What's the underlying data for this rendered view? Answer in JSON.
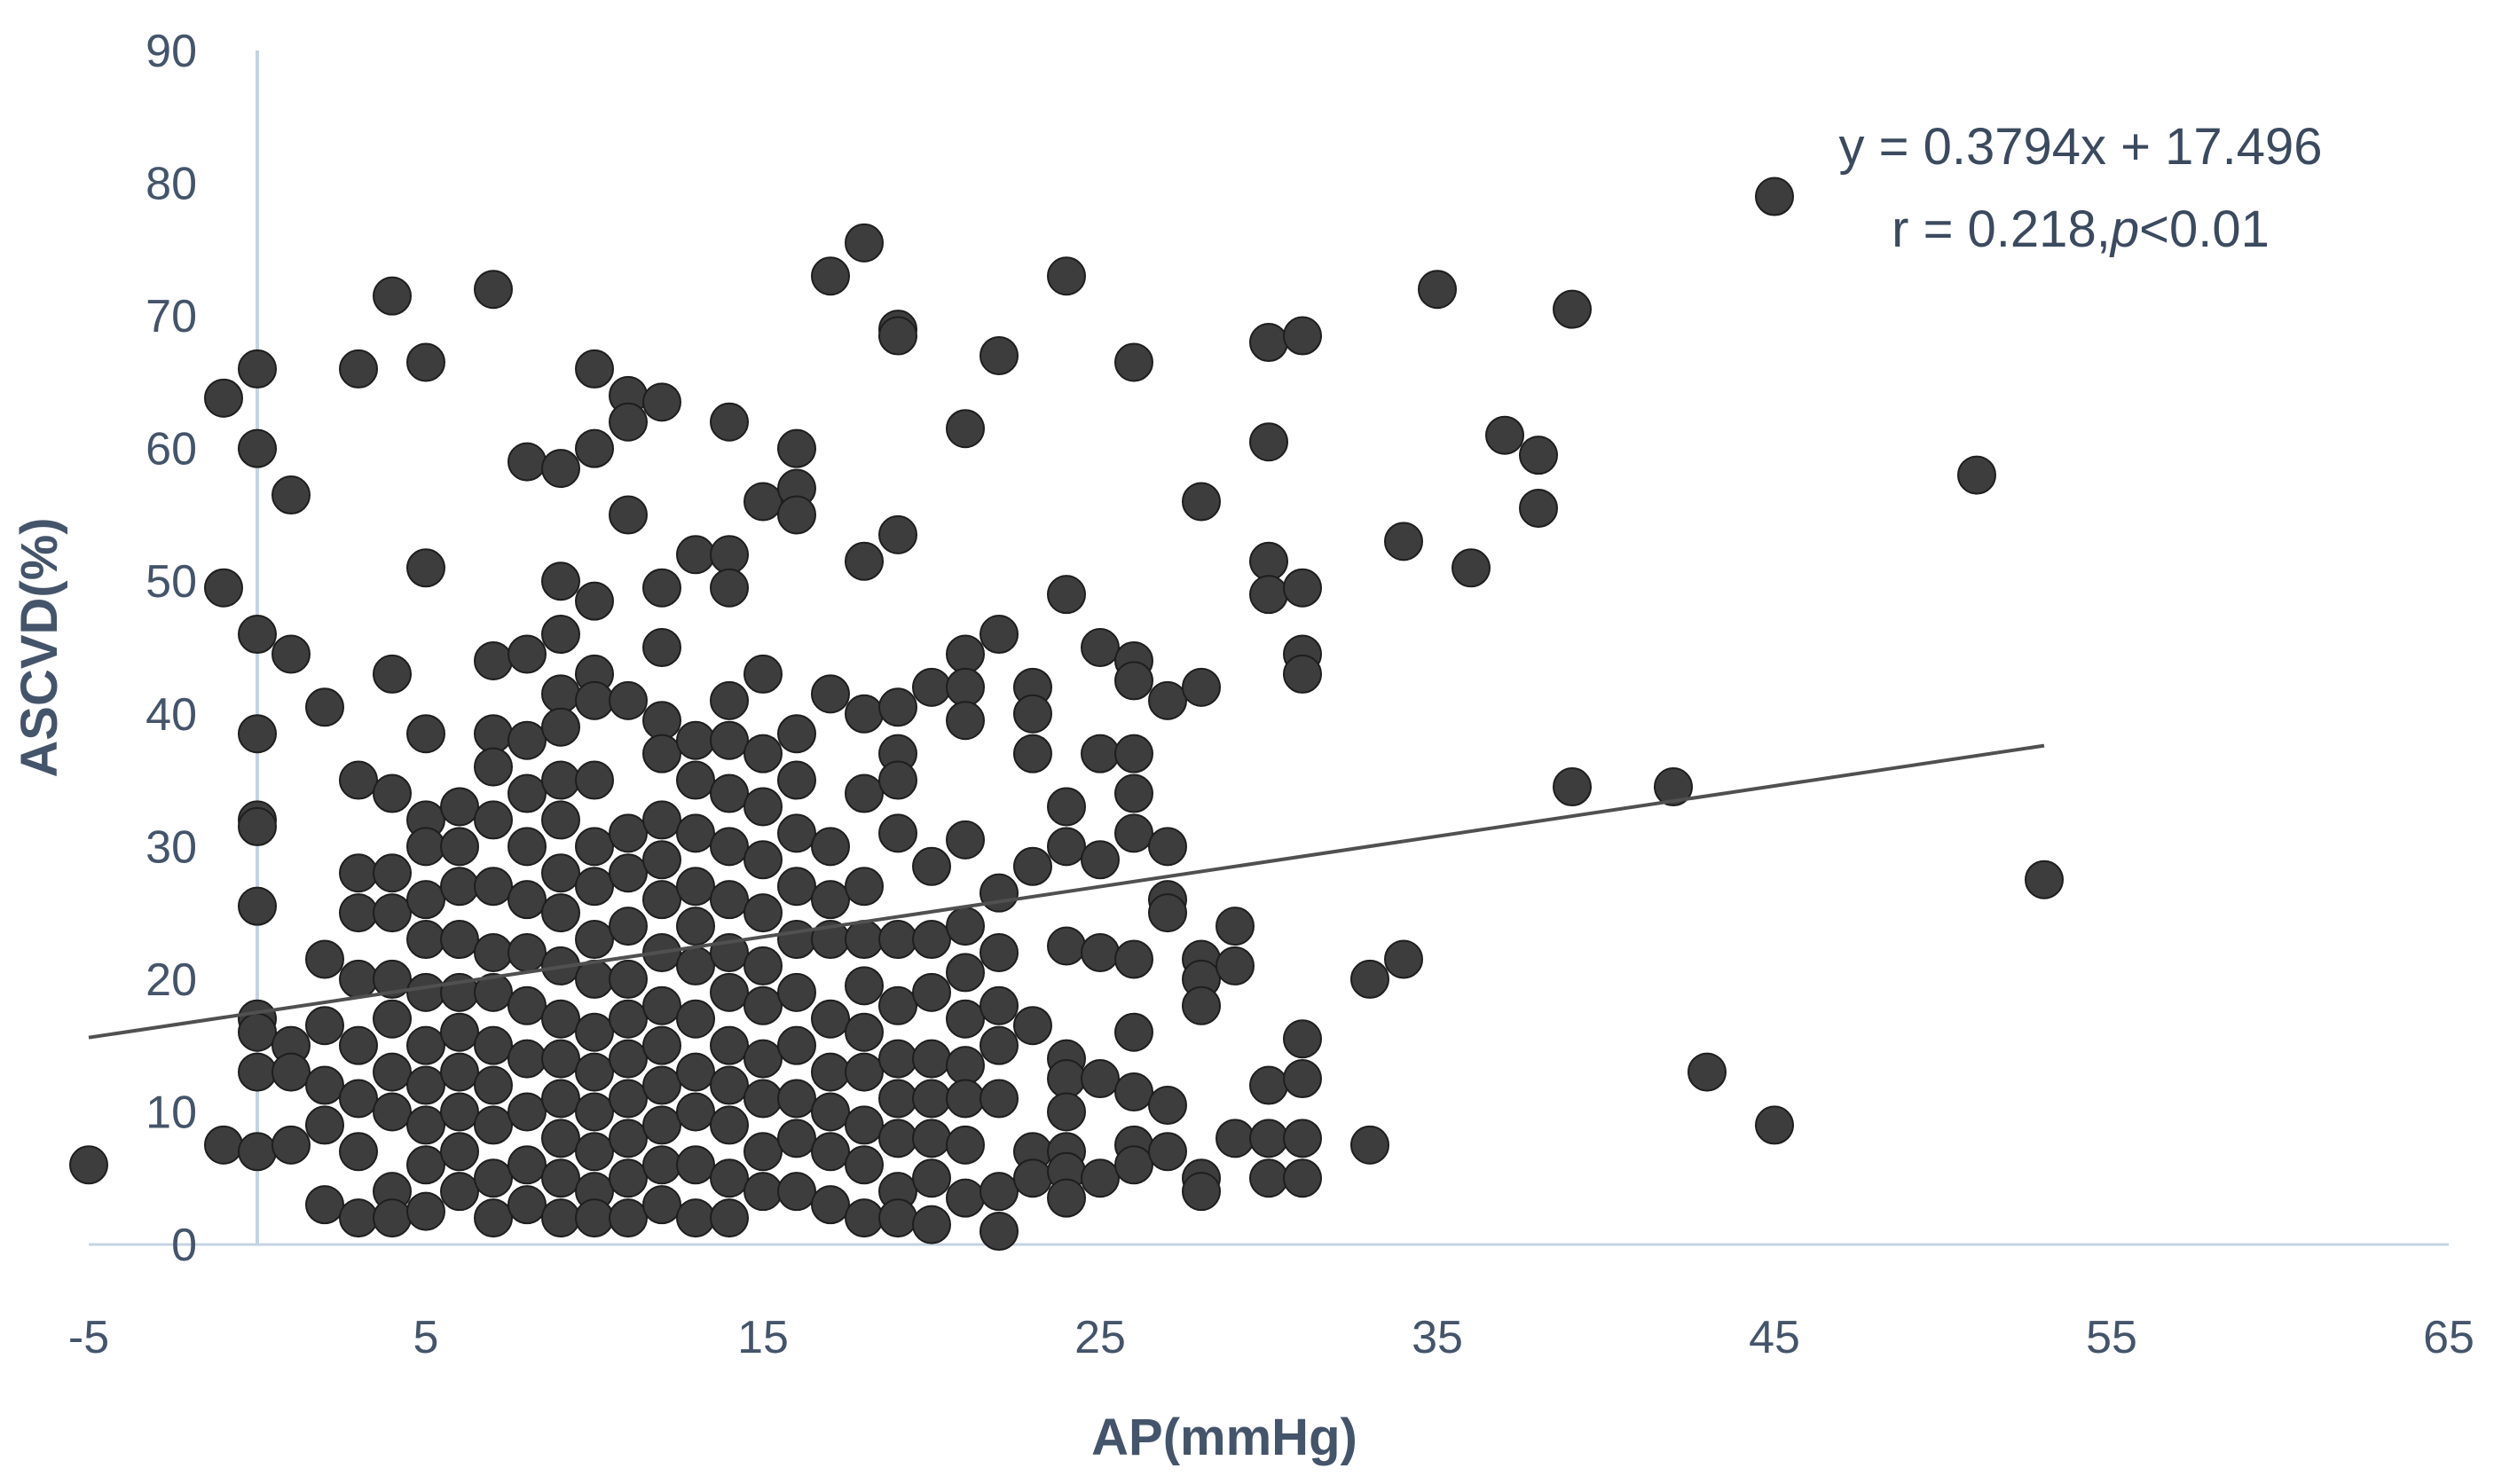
{
  "chart_data": {
    "type": "scatter",
    "title": "",
    "xlabel": "AP(mmHg)",
    "ylabel": "ASCVD(%)",
    "xlim": [
      -5,
      65
    ],
    "ylim": [
      0,
      90
    ],
    "x_ticks": [
      -5,
      5,
      15,
      25,
      35,
      45,
      55,
      65
    ],
    "y_ticks": [
      0,
      10,
      20,
      30,
      40,
      50,
      60,
      70,
      80,
      90
    ],
    "x_tick_labels": [
      "-5",
      "5",
      "15",
      "25",
      "35",
      "45",
      "55",
      "65"
    ],
    "y_tick_labels": [
      "0",
      "10",
      "20",
      "30",
      "40",
      "50",
      "60",
      "70",
      "80",
      "90"
    ],
    "grid": false,
    "annotation": {
      "equation": "y = 0.3794x + 17.496",
      "stat_prefix": "r = 0.218,",
      "stat_p": "p",
      "stat_suffix": "<0.01"
    },
    "trendline": {
      "slope": 0.3794,
      "intercept": 17.496,
      "x_range": [
        -5,
        53
      ]
    },
    "colors": {
      "point": "#3d3d3d",
      "axis_text": "#44546a",
      "trend": "#505050",
      "axis_line": "#c5d3e2"
    },
    "points": [
      [
        -5,
        6
      ],
      [
        -1,
        7.5
      ],
      [
        -1,
        49.5
      ],
      [
        -1,
        63.8
      ],
      [
        0,
        66
      ],
      [
        0,
        60
      ],
      [
        0,
        46
      ],
      [
        0,
        38.5
      ],
      [
        0,
        32
      ],
      [
        0,
        31.5
      ],
      [
        0,
        25.5
      ],
      [
        0,
        17
      ],
      [
        0,
        16
      ],
      [
        0,
        13
      ],
      [
        0,
        7
      ],
      [
        1,
        56.5
      ],
      [
        1,
        44.5
      ],
      [
        1,
        15
      ],
      [
        1,
        13
      ],
      [
        1,
        7.5
      ],
      [
        2,
        40.5
      ],
      [
        2,
        21.5
      ],
      [
        2,
        16.5
      ],
      [
        2,
        12
      ],
      [
        2,
        9
      ],
      [
        2,
        3
      ],
      [
        3,
        66
      ],
      [
        3,
        35
      ],
      [
        3,
        28
      ],
      [
        3,
        25
      ],
      [
        3,
        20
      ],
      [
        3,
        15
      ],
      [
        3,
        11
      ],
      [
        3,
        7
      ],
      [
        3,
        2
      ],
      [
        4,
        71.5
      ],
      [
        4,
        43
      ],
      [
        4,
        34
      ],
      [
        4,
        28
      ],
      [
        4,
        25
      ],
      [
        4,
        20
      ],
      [
        4,
        17
      ],
      [
        4,
        13
      ],
      [
        4,
        10
      ],
      [
        4,
        4
      ],
      [
        4,
        2
      ],
      [
        5,
        66.5
      ],
      [
        5,
        51
      ],
      [
        5,
        38.5
      ],
      [
        5,
        32
      ],
      [
        5,
        30
      ],
      [
        5,
        26
      ],
      [
        5,
        23
      ],
      [
        5,
        19
      ],
      [
        5,
        15
      ],
      [
        5,
        12
      ],
      [
        5,
        9
      ],
      [
        5,
        6
      ],
      [
        5,
        2.5
      ],
      [
        6,
        33
      ],
      [
        6,
        30
      ],
      [
        6,
        27
      ],
      [
        6,
        23
      ],
      [
        6,
        19
      ],
      [
        6,
        16
      ],
      [
        6,
        13
      ],
      [
        6,
        10
      ],
      [
        6,
        7
      ],
      [
        6,
        4
      ],
      [
        7,
        72
      ],
      [
        7,
        44
      ],
      [
        7,
        38.5
      ],
      [
        7,
        36
      ],
      [
        7,
        32
      ],
      [
        7,
        27
      ],
      [
        7,
        22
      ],
      [
        7,
        19
      ],
      [
        7,
        15
      ],
      [
        7,
        12
      ],
      [
        7,
        9
      ],
      [
        7,
        5
      ],
      [
        7,
        2
      ],
      [
        8,
        59
      ],
      [
        8,
        44.5
      ],
      [
        8,
        38
      ],
      [
        8,
        34
      ],
      [
        8,
        30
      ],
      [
        8,
        26
      ],
      [
        8,
        22
      ],
      [
        8,
        18
      ],
      [
        8,
        14
      ],
      [
        8,
        10
      ],
      [
        8,
        6
      ],
      [
        8,
        3
      ],
      [
        9,
        58.5
      ],
      [
        9,
        50
      ],
      [
        9,
        46
      ],
      [
        9,
        41.5
      ],
      [
        9,
        39
      ],
      [
        9,
        35
      ],
      [
        9,
        32
      ],
      [
        9,
        28
      ],
      [
        9,
        25
      ],
      [
        9,
        21
      ],
      [
        9,
        17
      ],
      [
        9,
        14
      ],
      [
        9,
        11
      ],
      [
        9,
        8
      ],
      [
        9,
        5
      ],
      [
        9,
        2
      ],
      [
        10,
        66
      ],
      [
        10,
        60
      ],
      [
        10,
        48.5
      ],
      [
        10,
        43
      ],
      [
        10,
        41
      ],
      [
        10,
        35
      ],
      [
        10,
        30
      ],
      [
        10,
        27
      ],
      [
        10,
        23
      ],
      [
        10,
        20
      ],
      [
        10,
        16
      ],
      [
        10,
        13
      ],
      [
        10,
        10
      ],
      [
        10,
        7
      ],
      [
        10,
        4
      ],
      [
        10,
        2
      ],
      [
        11,
        64
      ],
      [
        11,
        62
      ],
      [
        11,
        55
      ],
      [
        11,
        41
      ],
      [
        11,
        31
      ],
      [
        11,
        28
      ],
      [
        11,
        24
      ],
      [
        11,
        20
      ],
      [
        11,
        17
      ],
      [
        11,
        14
      ],
      [
        11,
        11
      ],
      [
        11,
        8
      ],
      [
        11,
        5
      ],
      [
        11,
        2
      ],
      [
        12,
        63.5
      ],
      [
        12,
        49.5
      ],
      [
        12,
        45
      ],
      [
        12,
        39.5
      ],
      [
        12,
        37
      ],
      [
        12,
        32
      ],
      [
        12,
        29
      ],
      [
        12,
        26
      ],
      [
        12,
        22
      ],
      [
        12,
        18
      ],
      [
        12,
        15
      ],
      [
        12,
        12
      ],
      [
        12,
        9
      ],
      [
        12,
        6
      ],
      [
        12,
        3
      ],
      [
        13,
        52
      ],
      [
        13,
        38
      ],
      [
        13,
        35
      ],
      [
        13,
        31
      ],
      [
        13,
        27
      ],
      [
        13,
        24
      ],
      [
        13,
        21
      ],
      [
        13,
        17
      ],
      [
        13,
        13
      ],
      [
        13,
        10
      ],
      [
        13,
        6
      ],
      [
        13,
        2
      ],
      [
        14,
        62
      ],
      [
        14,
        52
      ],
      [
        14,
        49.5
      ],
      [
        14,
        41
      ],
      [
        14,
        38
      ],
      [
        14,
        34
      ],
      [
        14,
        30
      ],
      [
        14,
        26
      ],
      [
        14,
        22
      ],
      [
        14,
        19
      ],
      [
        14,
        15
      ],
      [
        14,
        12
      ],
      [
        14,
        9
      ],
      [
        14,
        5
      ],
      [
        14,
        2
      ],
      [
        15,
        56
      ],
      [
        15,
        43
      ],
      [
        15,
        37
      ],
      [
        15,
        33
      ],
      [
        15,
        29
      ],
      [
        15,
        25
      ],
      [
        15,
        21
      ],
      [
        15,
        18
      ],
      [
        15,
        14
      ],
      [
        15,
        11
      ],
      [
        15,
        7
      ],
      [
        15,
        4
      ],
      [
        16,
        60
      ],
      [
        16,
        57
      ],
      [
        16,
        55
      ],
      [
        16,
        38.5
      ],
      [
        16,
        35
      ],
      [
        16,
        31
      ],
      [
        16,
        27
      ],
      [
        16,
        23
      ],
      [
        16,
        19
      ],
      [
        16,
        15
      ],
      [
        16,
        11
      ],
      [
        16,
        8
      ],
      [
        16,
        4
      ],
      [
        17,
        73
      ],
      [
        17,
        41.5
      ],
      [
        17,
        30
      ],
      [
        17,
        26
      ],
      [
        17,
        23
      ],
      [
        17,
        17
      ],
      [
        17,
        13
      ],
      [
        17,
        10
      ],
      [
        17,
        7
      ],
      [
        17,
        3
      ],
      [
        18,
        75.5
      ],
      [
        18,
        51.5
      ],
      [
        18,
        40
      ],
      [
        18,
        34
      ],
      [
        18,
        27
      ],
      [
        18,
        23
      ],
      [
        18,
        19.5
      ],
      [
        18,
        16
      ],
      [
        18,
        13
      ],
      [
        18,
        9
      ],
      [
        18,
        6
      ],
      [
        18,
        2
      ],
      [
        19,
        69
      ],
      [
        19,
        68.5
      ],
      [
        19,
        53.5
      ],
      [
        19,
        40.5
      ],
      [
        19,
        37
      ],
      [
        19,
        35
      ],
      [
        19,
        31
      ],
      [
        19,
        23
      ],
      [
        19,
        18
      ],
      [
        19,
        14
      ],
      [
        19,
        11
      ],
      [
        19,
        8
      ],
      [
        19,
        4
      ],
      [
        19,
        2
      ],
      [
        20,
        42
      ],
      [
        20,
        28.5
      ],
      [
        20,
        23
      ],
      [
        20,
        19
      ],
      [
        20,
        14
      ],
      [
        20,
        11
      ],
      [
        20,
        8
      ],
      [
        20,
        5
      ],
      [
        20,
        1.5
      ],
      [
        21,
        61.5
      ],
      [
        21,
        44.5
      ],
      [
        21,
        42
      ],
      [
        21,
        39.5
      ],
      [
        21,
        30.5
      ],
      [
        21,
        24
      ],
      [
        21,
        20.5
      ],
      [
        21,
        17
      ],
      [
        21,
        13.5
      ],
      [
        21,
        11
      ],
      [
        21,
        7.5
      ],
      [
        21,
        3.5
      ],
      [
        22,
        67
      ],
      [
        22,
        46
      ],
      [
        22,
        26.5
      ],
      [
        22,
        22
      ],
      [
        22,
        18
      ],
      [
        22,
        15
      ],
      [
        22,
        11
      ],
      [
        22,
        4
      ],
      [
        22,
        1
      ],
      [
        23,
        42
      ],
      [
        23,
        40
      ],
      [
        23,
        37
      ],
      [
        23,
        28.5
      ],
      [
        23,
        16.5
      ],
      [
        23,
        7
      ],
      [
        23,
        5
      ],
      [
        24,
        73
      ],
      [
        24,
        49
      ],
      [
        24,
        33
      ],
      [
        24,
        30
      ],
      [
        24,
        22.5
      ],
      [
        24,
        14
      ],
      [
        24,
        12.5
      ],
      [
        24,
        10
      ],
      [
        24,
        7
      ],
      [
        24,
        5.5
      ],
      [
        24,
        3.5
      ],
      [
        25,
        45
      ],
      [
        25,
        37
      ],
      [
        25,
        29
      ],
      [
        25,
        22
      ],
      [
        25,
        12.5
      ],
      [
        25,
        5
      ],
      [
        26,
        66.5
      ],
      [
        26,
        44
      ],
      [
        26,
        42.5
      ],
      [
        26,
        37
      ],
      [
        26,
        34
      ],
      [
        26,
        31
      ],
      [
        26,
        21.5
      ],
      [
        26,
        16
      ],
      [
        26,
        11.5
      ],
      [
        26,
        7.5
      ],
      [
        26,
        6
      ],
      [
        27,
        41
      ],
      [
        27,
        30
      ],
      [
        27,
        26
      ],
      [
        27,
        25
      ],
      [
        27,
        10.5
      ],
      [
        27,
        7
      ],
      [
        28,
        56
      ],
      [
        28,
        42
      ],
      [
        28,
        21.5
      ],
      [
        28,
        20
      ],
      [
        28,
        18
      ],
      [
        28,
        5
      ],
      [
        28,
        4
      ],
      [
        29,
        24
      ],
      [
        29,
        21
      ],
      [
        29,
        8
      ],
      [
        30,
        68
      ],
      [
        30,
        60.5
      ],
      [
        30,
        51.5
      ],
      [
        30,
        49
      ],
      [
        30,
        12
      ],
      [
        30,
        8
      ],
      [
        30,
        5
      ],
      [
        31,
        68.5
      ],
      [
        31,
        49.5
      ],
      [
        31,
        44.5
      ],
      [
        31,
        43
      ],
      [
        31,
        15.5
      ],
      [
        31,
        12.5
      ],
      [
        31,
        8
      ],
      [
        31,
        5
      ],
      [
        33,
        20
      ],
      [
        33,
        7.5
      ],
      [
        34,
        53
      ],
      [
        34,
        21.5
      ],
      [
        35,
        72
      ],
      [
        36,
        51
      ],
      [
        37,
        61
      ],
      [
        38,
        59.5
      ],
      [
        38,
        55.5
      ],
      [
        39,
        70.5
      ],
      [
        39,
        34.5
      ],
      [
        42,
        34.5
      ],
      [
        43,
        13
      ],
      [
        45,
        79
      ],
      [
        45,
        9
      ],
      [
        51,
        58
      ],
      [
        53,
        27.5
      ]
    ]
  }
}
